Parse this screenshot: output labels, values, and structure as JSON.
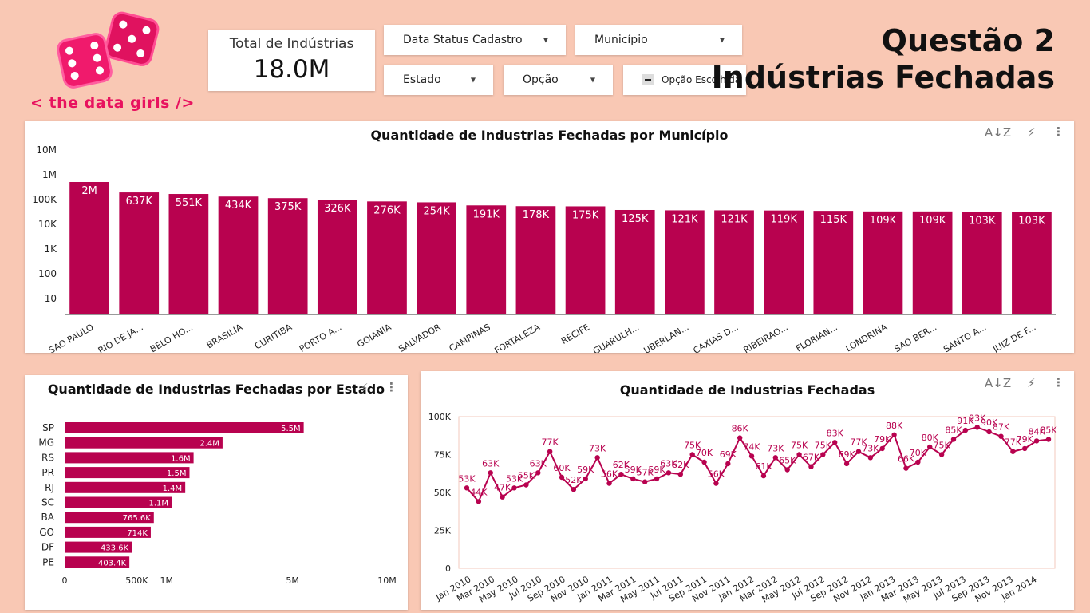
{
  "brand": {
    "name": "< the data girls />",
    "accent": "#b8024f",
    "pink": "#ff1f7a"
  },
  "header": {
    "title_line1": "Questão 2",
    "title_line2": "Indústrias Fechadas"
  },
  "kpi": {
    "label": "Total de Indústrias",
    "value": "18.0M"
  },
  "filters": {
    "data_status": "Data Status Cadastro",
    "municipio": "Município",
    "estado": "Estado",
    "opcao": "Opção",
    "opcao_escolhida": "Opção Escolhida"
  },
  "chart_data": [
    {
      "id": "municipio",
      "type": "bar",
      "title": "Quantidade de Industrias Fechadas por Município",
      "scale": "log",
      "y_ticks": [
        "10M",
        "1M",
        "100K",
        "10K",
        "1K",
        "100",
        "10"
      ],
      "y_tick_values": [
        10000000,
        1000000,
        100000,
        10000,
        1000,
        100,
        10
      ],
      "categories": [
        "SAO PAULO",
        "RIO DE JA...",
        "BELO HO...",
        "BRASILIA",
        "CURITIBA",
        "PORTO A...",
        "GOIANIA",
        "SALVADOR",
        "CAMPINAS",
        "FORTALEZA",
        "RECIFE",
        "GUARULH...",
        "UBERLAN...",
        "CAXIAS D...",
        "RIBEIRAO...",
        "FLORIAN...",
        "LONDRINA",
        "SAO BER...",
        "SANTO A...",
        "JUIZ DE F..."
      ],
      "values": [
        2000000,
        637000,
        551000,
        434000,
        375000,
        326000,
        276000,
        254000,
        191000,
        178000,
        175000,
        125000,
        121000,
        121000,
        119000,
        115000,
        109000,
        109000,
        103000,
        103000
      ],
      "labels": [
        "2M",
        "637K",
        "551K",
        "434K",
        "375K",
        "326K",
        "276K",
        "254K",
        "191K",
        "178K",
        "175K",
        "125K",
        "121K",
        "121K",
        "119K",
        "115K",
        "109K",
        "109K",
        "103K",
        "103K"
      ]
    },
    {
      "id": "estado",
      "type": "bar",
      "orientation": "horizontal",
      "title": "Quantidade de Industrias Fechadas por Estado",
      "scale": "sqrt",
      "x_ticks": [
        "0",
        "500K",
        "1M",
        "5M",
        "10M"
      ],
      "x_tick_values": [
        0,
        500000,
        1000000,
        5000000,
        10000000
      ],
      "categories": [
        "SP",
        "MG",
        "RS",
        "PR",
        "RJ",
        "SC",
        "BA",
        "GO",
        "DF",
        "PE"
      ],
      "values": [
        5500000,
        2400000,
        1600000,
        1500000,
        1400000,
        1100000,
        765600,
        714000,
        433600,
        403400
      ],
      "labels": [
        "5.5M",
        "2.4M",
        "1.6M",
        "1.5M",
        "1.4M",
        "1.1M",
        "765.6K",
        "714K",
        "433.6K",
        "403.4K"
      ]
    },
    {
      "id": "tempo",
      "type": "line",
      "title": "Quantidade de Industrias Fechadas",
      "ylim": [
        0,
        100000
      ],
      "y_ticks": [
        "0",
        "25K",
        "50K",
        "75K",
        "100K"
      ],
      "y_tick_values": [
        0,
        25000,
        50000,
        75000,
        100000
      ],
      "x_tick_labels": [
        "Jan 2010",
        "Mar 2010",
        "May 2010",
        "Jul 2010",
        "Sep 2010",
        "Nov 2010",
        "Jan 2011",
        "Mar 2011",
        "May 2011",
        "Jul 2011",
        "Sep 2011",
        "Nov 2011",
        "Jan 2012",
        "Mar 2012",
        "May 2012",
        "Jul 2012",
        "Sep 2012",
        "Nov 2012",
        "Jan 2013",
        "Mar 2013",
        "May 2013",
        "Jul 2013",
        "Sep 2013",
        "Nov 2013",
        "Jan 2014"
      ],
      "values": [
        53000,
        44000,
        63000,
        47000,
        53000,
        55000,
        63000,
        77000,
        60000,
        52000,
        59000,
        73000,
        56000,
        62000,
        59000,
        57000,
        59000,
        63000,
        62000,
        75000,
        70000,
        56000,
        69000,
        86000,
        74000,
        61000,
        73000,
        65000,
        75000,
        67000,
        75000,
        83000,
        69000,
        77000,
        73000,
        79000,
        88000,
        66000,
        70000,
        80000,
        75000,
        85000,
        91000,
        93000,
        90000,
        87000,
        77000,
        79000,
        84000,
        85000
      ],
      "labels": [
        "53K",
        "44K",
        "63K",
        "47K",
        "53K",
        "55K",
        "63K",
        "77K",
        "60K",
        "52K",
        "59K",
        "73K",
        "56K",
        "62K",
        "59K",
        "57K",
        "59K",
        "63K",
        "62K",
        "75K",
        "70K",
        "56K",
        "69K",
        "86K",
        "74K",
        "61K",
        "73K",
        "65K",
        "75K",
        "67K",
        "75K",
        "83K",
        "69K",
        "77K",
        "73K",
        "79K",
        "88K",
        "66K",
        "70K",
        "80K",
        "75K",
        "85K",
        "91K",
        "93K",
        "90K",
        "87K",
        "77K",
        "79K",
        "84K",
        "85K"
      ]
    }
  ]
}
